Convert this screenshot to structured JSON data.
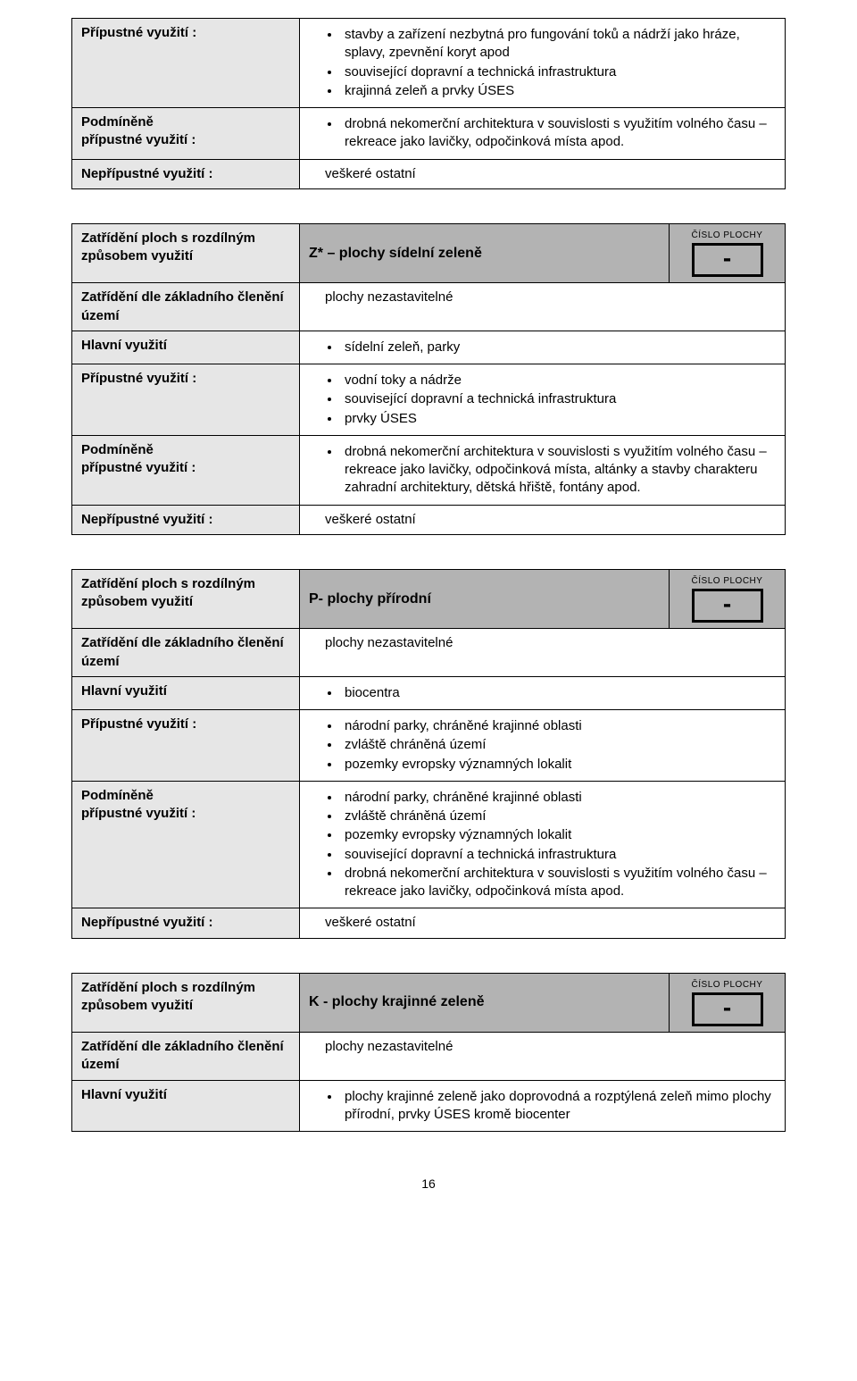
{
  "top_block": {
    "rows": [
      {
        "label": "Přípustné využití :",
        "items": [
          "stavby a zařízení nezbytná pro fungování toků a nádrží jako hráze, splavy, zpevnění koryt apod",
          "související dopravní a technická infrastruktura",
          "krajinná zeleň a prvky ÚSES"
        ]
      },
      {
        "label": "Podmíněně\npřípustné využití :",
        "items": [
          "drobná nekomerční architektura v souvislosti s využitím volného času – rekreace jako lavičky, odpočinková  místa apod."
        ]
      },
      {
        "label": "Nepřípustné využití :",
        "plain": "veškeré ostatní"
      }
    ]
  },
  "blocks": [
    {
      "header": {
        "left": "Zatřídění ploch s rozdílným způsobem využití",
        "title": "Z* – plochy sídelní zeleně",
        "badge_label": "ČÍSLO PLOCHY",
        "badge_value": "-"
      },
      "rows": [
        {
          "label": "Zatřídění dle základního členění území",
          "plain": "plochy nezastavitelné"
        },
        {
          "label": "Hlavní využití",
          "items": [
            "sídelní zeleň, parky"
          ]
        },
        {
          "label": "Přípustné využití :",
          "items": [
            "vodní toky a nádrže",
            "související dopravní a technická infrastruktura",
            "prvky ÚSES"
          ]
        },
        {
          "label": "Podmíněně\npřípustné využití :",
          "items": [
            "drobná nekomerční architektura v souvislosti s využitím volného času – rekreace jako lavičky, odpočinková  místa, altánky a stavby charakteru zahradní architektury, dětská hřiště, fontány apod."
          ]
        },
        {
          "label": "Nepřípustné využití :",
          "plain": "veškeré ostatní"
        }
      ]
    },
    {
      "header": {
        "left": "Zatřídění ploch s rozdílným způsobem využití",
        "title": "P- plochy přírodní",
        "badge_label": "ČÍSLO PLOCHY",
        "badge_value": "-"
      },
      "rows": [
        {
          "label": "Zatřídění dle základního členění území",
          "plain": "plochy nezastavitelné"
        },
        {
          "label": "Hlavní využití",
          "items": [
            "biocentra"
          ]
        },
        {
          "label": "Přípustné využití :",
          "items": [
            "národní parky, chráněné krajinné oblasti",
            "zvláště chráněná území",
            "pozemky evropsky významných lokalit"
          ]
        },
        {
          "label": "Podmíněně\npřípustné využití :",
          "items": [
            "národní parky, chráněné krajinné oblasti",
            "zvláště chráněná území",
            "pozemky evropsky významných lokalit",
            "související dopravní a technická infrastruktura",
            "drobná nekomerční architektura v souvislosti s využitím volného času – rekreace jako lavičky, odpočinková  místa apod."
          ]
        },
        {
          "label": "Nepřípustné využití :",
          "plain": "veškeré ostatní"
        }
      ]
    },
    {
      "header": {
        "left": "Zatřídění ploch s rozdílným způsobem využití",
        "title": "K - plochy krajinné zeleně",
        "badge_label": "ČÍSLO PLOCHY",
        "badge_value": "-"
      },
      "rows": [
        {
          "label": "Zatřídění dle základního členění území",
          "plain": "plochy  nezastavitelné"
        },
        {
          "label": "Hlavní využití",
          "items": [
            "plochy krajinné zeleně jako doprovodná a rozptýlená zeleň mimo plochy přírodní, prvky ÚSES kromě biocenter"
          ]
        }
      ]
    }
  ],
  "page_number": "16"
}
